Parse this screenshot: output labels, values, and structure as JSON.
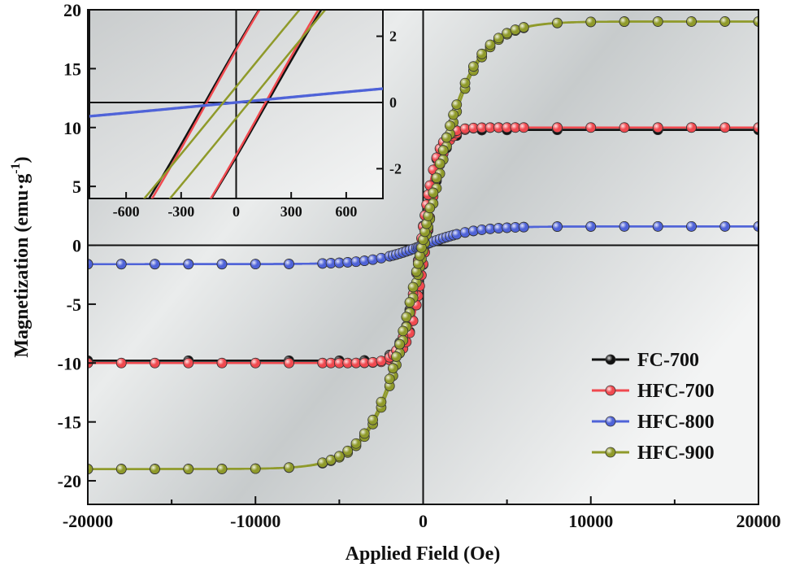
{
  "chart_data": {
    "type": "scatter",
    "xlabel": "Applied Field (Oe)",
    "ylabel_main": "Magnetization (emu·g",
    "ylabel_sup": "-1",
    "ylabel_close": ")",
    "xlim": [
      -20000,
      20000
    ],
    "ylim": [
      -22,
      20
    ],
    "xticks": [
      "-20000",
      "-10000",
      "0",
      "10000",
      "20000"
    ],
    "yticks": [
      "-20",
      "-15",
      "-10",
      "-5",
      "0",
      "5",
      "10",
      "15",
      "20"
    ],
    "legend_position": "bottom-right",
    "series": [
      {
        "name": "FC-700",
        "color": "#111111",
        "Ms": 9.8,
        "H0": 1000,
        "Hc": 170,
        "marker_every": 3
      },
      {
        "name": "HFC-700",
        "color": "#f0494f",
        "Ms": 10.0,
        "H0": 1000,
        "Hc": 160,
        "marker_every": 1
      },
      {
        "name": "HFC-800",
        "color": "#4f63d8",
        "Ms": 1.6,
        "H0": 3000,
        "Hc": 20,
        "marker_every": 1
      },
      {
        "name": "HFC-900",
        "color": "#8f9a2a",
        "Ms": 19.0,
        "H0": 2800,
        "Hc": 70,
        "marker_every": 1
      }
    ],
    "inset": {
      "xlim": [
        -800,
        800
      ],
      "ylim": [
        -2.9,
        2.8
      ],
      "xticks": [
        "-600",
        "-300",
        "0",
        "300",
        "600"
      ],
      "yticks": [
        "2",
        "0",
        "-2"
      ]
    }
  }
}
